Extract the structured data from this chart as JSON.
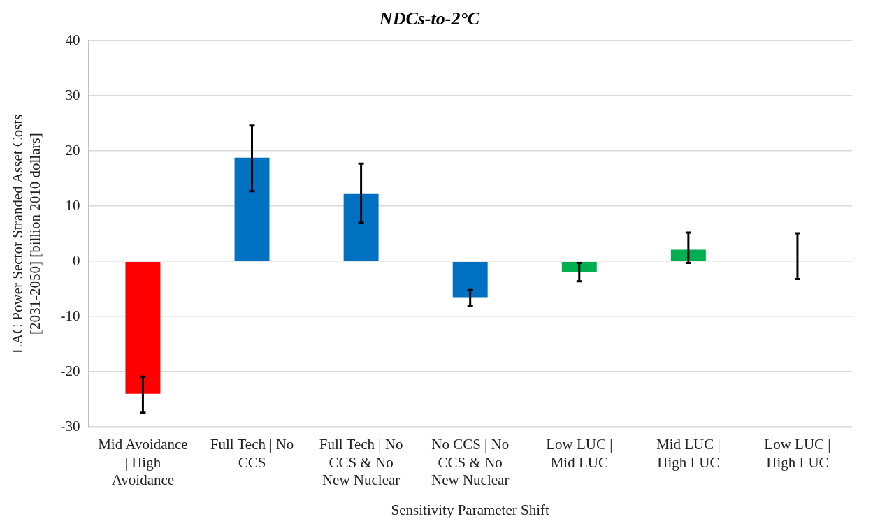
{
  "chart_data": {
    "type": "bar",
    "title": "NDCs-to-2°C",
    "xlabel": "Sensitivity Parameter Shift",
    "ylabel": "LAC Power Sector Stranded Asset Costs [2031-2050] [billion 2010 dollars]",
    "categories": [
      "Mid Avoidance | High Avoidance",
      "Full Tech | No CCS",
      "Full Tech | No CCS & No New Nuclear",
      "No CCS | No CCS & No New Nuclear",
      "Low LUC | Mid LUC",
      "Mid LUC | High LUC",
      "Low LUC | High LUC"
    ],
    "values": [
      -24.0,
      18.8,
      12.2,
      -6.5,
      -1.9,
      2.1,
      0
    ],
    "colors": [
      "#ff0000",
      "#0070c0",
      "#0070c0",
      "#0070c0",
      "#00b050",
      "#00b050",
      "#00b050"
    ],
    "errors": [
      [
        -27.4,
        -20.9
      ],
      [
        12.7,
        24.6
      ],
      [
        7.0,
        17.7
      ],
      [
        -8.0,
        -5.2
      ],
      [
        -3.6,
        -0.3
      ],
      [
        -0.3,
        5.2
      ],
      [
        -3.2,
        5.1
      ]
    ],
    "ylim": [
      -30,
      40
    ],
    "yticks": [
      -30,
      -20,
      -10,
      0,
      10,
      20,
      30,
      40
    ],
    "grid": "y",
    "legend": false
  }
}
